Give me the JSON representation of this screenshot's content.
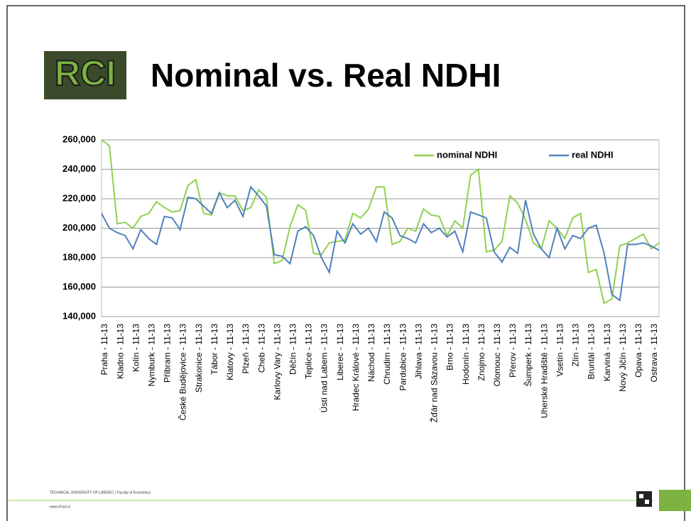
{
  "slide": {
    "logo": "RCI",
    "footer_left": "TECHNICAL UNIVERSITY OF LIBEREC | Faculty of Economics",
    "footer_url": "www.ef.tul.cz"
  },
  "chart_data": {
    "type": "line",
    "title": "Nominal vs. Real NDHI",
    "categories": [
      "Praha - 11-13",
      null,
      "Kladno - 11-13",
      null,
      "Kolín - 11-13",
      null,
      "Nymburk - 11-13",
      null,
      "Příbram - 11-13",
      null,
      "České Budějovice - 11-13",
      null,
      "Strakonice - 11-13",
      null,
      "Tábor - 11-13",
      null,
      "Klatovy - 11-13",
      null,
      "Plzeň - 11-13",
      null,
      "Cheb - 11-13",
      null,
      "Karlovy Vary - 11-13",
      null,
      "Děčín - 11-13",
      null,
      "Teplice - 11-13",
      null,
      "Ústí nad Labem - 11-13",
      null,
      "Liberec - 11-13",
      null,
      "Hradec Králové - 11-13",
      null,
      "Náchod - 11-13",
      null,
      "Chrudim - 11-13",
      null,
      "Pardubice - 11-13",
      null,
      "Jihlava - 11-13",
      null,
      "Žďár nad Sázavou - 11-13",
      null,
      "Brno - 11-13",
      null,
      "Hodonín - 11-13",
      null,
      "Znojmo - 11-13",
      null,
      "Olomouc - 11-13",
      null,
      "Přerov - 11-13",
      null,
      "Šumperk - 11-13",
      null,
      "Uherské Hradiště - 11-13",
      null,
      "Vsetín - 11-13",
      null,
      "Zlín - 11-13",
      null,
      "Bruntál - 11-13",
      null,
      "Karviná - 11-13",
      null,
      "Nový Jičín - 11-13",
      null,
      "Opava - 11-13",
      null,
      "Ostrava - 11-13",
      null
    ],
    "series": [
      {
        "name": "nominal NDHI",
        "color": "#92d050",
        "values": [
          260000,
          256000,
          203000,
          204000,
          200000,
          208000,
          210000,
          218000,
          214000,
          211000,
          212000,
          229000,
          233000,
          210000,
          209000,
          224000,
          222000,
          222000,
          212000,
          214000,
          226000,
          221000,
          176000,
          178000,
          201000,
          216000,
          212000,
          183000,
          182000,
          190000,
          191000,
          192000,
          210000,
          207000,
          213000,
          228000,
          228000,
          189000,
          191000,
          200000,
          198000,
          213000,
          209000,
          208000,
          195000,
          205000,
          200000,
          236000,
          240000,
          184000,
          185000,
          191000,
          222000,
          217000,
          206000,
          190000,
          186000,
          205000,
          200000,
          193000,
          207000,
          210000,
          170000,
          172000,
          149000,
          152000,
          188000,
          190000,
          193000,
          196000,
          186000,
          190000
        ]
      },
      {
        "name": "real NDHI",
        "color": "#4f81bd",
        "values": [
          210000,
          200000,
          197000,
          195000,
          186000,
          199000,
          193000,
          189000,
          208000,
          207000,
          199000,
          221000,
          220000,
          215000,
          210000,
          224000,
          214000,
          219000,
          208000,
          228000,
          222000,
          215000,
          182000,
          181000,
          176000,
          198000,
          201000,
          195000,
          180000,
          170000,
          198000,
          190000,
          203000,
          196000,
          200000,
          191000,
          211000,
          207000,
          195000,
          193000,
          190000,
          203000,
          197000,
          200000,
          194000,
          198000,
          184000,
          211000,
          209000,
          207000,
          184000,
          177000,
          187000,
          183000,
          219000,
          196000,
          186000,
          180000,
          200000,
          186000,
          195000,
          193000,
          200000,
          202000,
          183000,
          155000,
          151000,
          189000,
          189000,
          190000,
          188000,
          185000
        ]
      }
    ],
    "ylim": [
      140000,
      260000
    ],
    "yticks": [
      {
        "value": 140000,
        "label": "140,000"
      },
      {
        "value": 160000,
        "label": "160,000"
      },
      {
        "value": 180000,
        "label": "180,000"
      },
      {
        "value": 200000,
        "label": "200,000"
      },
      {
        "value": 220000,
        "label": "220,000"
      },
      {
        "value": 240000,
        "label": "240,000"
      },
      {
        "value": 260000,
        "label": "260,000"
      }
    ],
    "grid": true,
    "legend": "top-right"
  }
}
